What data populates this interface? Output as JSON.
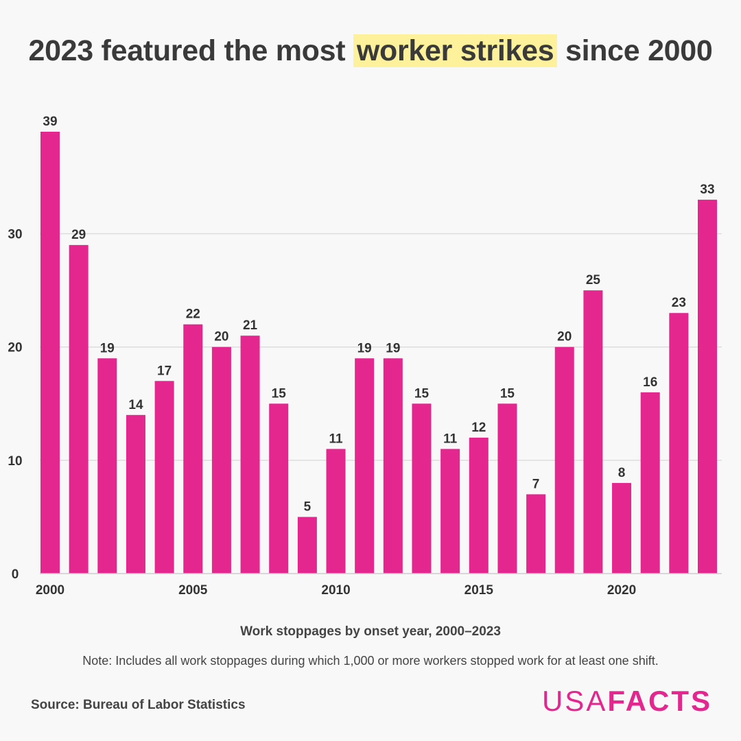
{
  "title": {
    "pre": "2023 featured the most ",
    "highlight": "worker strikes",
    "post": " since 2000"
  },
  "subtitle": "Work stoppages by onset year, 2000–2023",
  "note": "Note: Includes all work stoppages during which 1,000 or more workers stopped work for at least one shift.",
  "source": "Source: Bureau of Labor Statistics",
  "logo": {
    "part1": "USA",
    "part2": "FACTS"
  },
  "colors": {
    "bar": "#e4268f",
    "highlight": "#fdf29b",
    "grid": "#dddddd",
    "text": "#333333"
  },
  "chart_data": {
    "type": "bar",
    "categories": [
      "2000",
      "2001",
      "2002",
      "2003",
      "2004",
      "2005",
      "2006",
      "2007",
      "2008",
      "2009",
      "2010",
      "2011",
      "2012",
      "2013",
      "2014",
      "2015",
      "2016",
      "2017",
      "2018",
      "2019",
      "2020",
      "2021",
      "2022",
      "2023"
    ],
    "values": [
      39,
      29,
      19,
      14,
      17,
      22,
      20,
      21,
      15,
      5,
      11,
      19,
      19,
      15,
      11,
      12,
      15,
      7,
      20,
      25,
      8,
      16,
      23,
      33
    ],
    "x_tick_labels": [
      "2000",
      "2005",
      "2010",
      "2015",
      "2020"
    ],
    "y_ticks": [
      0,
      10,
      20,
      30
    ],
    "ylim": [
      0,
      39
    ],
    "grid": true,
    "data_labels": true
  }
}
